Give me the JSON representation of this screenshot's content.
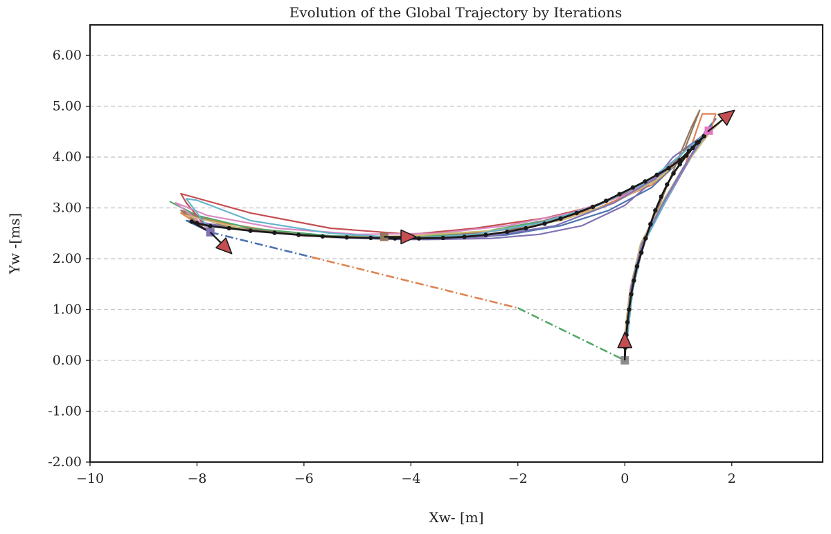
{
  "chart_data": {
    "type": "line",
    "title": "Evolution of the Global Trajectory by Iterations",
    "xlabel": "Xw- [m]",
    "ylabel": "Yw -[ms]",
    "xlim": [
      -10,
      3.7
    ],
    "ylim": [
      -2,
      6.6
    ],
    "x_ticks": [
      -10,
      -8,
      -6,
      -4,
      -2,
      0,
      2
    ],
    "x_tick_labels": [
      "−10",
      "−8",
      "−6",
      "−4",
      "−2",
      "0",
      "2"
    ],
    "y_ticks": [
      -2,
      -1,
      0,
      1,
      2,
      3,
      4,
      5,
      6
    ],
    "y_tick_labels": [
      "-2.00",
      "-1.00",
      "0.00",
      "1.00",
      "2.00",
      "3.00",
      "4.00",
      "5.00",
      "6.00"
    ],
    "grid": "horizontal dashed",
    "connector": {
      "style": "dash-dot",
      "segments": [
        {
          "color": "#4c72b0",
          "points": [
            [
              -7.75,
              2.52
            ],
            [
              -5.85,
              2.03
            ]
          ]
        },
        {
          "color": "#dd8452",
          "points": [
            [
              -5.85,
              2.03
            ],
            [
              -2.0,
              1.03
            ]
          ]
        },
        {
          "color": "#55a868",
          "points": [
            [
              -2.0,
              1.03
            ],
            [
              0.0,
              0.0
            ]
          ]
        }
      ]
    },
    "series": [
      {
        "color": "#4c72b0",
        "points": [
          [
            0.0,
            0.5
          ],
          [
            0.1,
            1.4
          ],
          [
            0.3,
            2.3
          ],
          [
            0.7,
            3.1
          ],
          [
            1.1,
            3.8
          ],
          [
            1.5,
            4.5
          ],
          [
            1.7,
            4.75
          ],
          [
            1.5,
            4.45
          ],
          [
            1.05,
            3.95
          ],
          [
            0.5,
            3.4
          ],
          [
            -0.3,
            2.95
          ],
          [
            -1.2,
            2.65
          ],
          [
            -2.2,
            2.47
          ],
          [
            -3.2,
            2.4
          ],
          [
            -3.7,
            2.38
          ]
        ]
      },
      {
        "color": "#4c72b0",
        "points": [
          [
            -3.7,
            2.38
          ],
          [
            -5.5,
            2.42
          ],
          [
            -7.2,
            2.58
          ],
          [
            -8.0,
            2.72
          ],
          [
            -8.2,
            2.75
          ],
          [
            -7.75,
            2.52
          ]
        ]
      },
      {
        "color": "#dd8452",
        "points": [
          [
            0.05,
            0.5
          ],
          [
            0.15,
            1.4
          ],
          [
            0.35,
            2.3
          ],
          [
            0.75,
            3.1
          ],
          [
            1.1,
            3.75
          ],
          [
            1.35,
            4.55
          ],
          [
            1.45,
            4.85
          ],
          [
            1.7,
            4.85
          ],
          [
            1.6,
            4.5
          ],
          [
            1.1,
            4.0
          ],
          [
            0.5,
            3.45
          ],
          [
            -0.5,
            3.0
          ],
          [
            -1.5,
            2.7
          ],
          [
            -3.0,
            2.45
          ],
          [
            -4.5,
            2.4
          ],
          [
            -6.0,
            2.45
          ],
          [
            -7.5,
            2.7
          ],
          [
            -8.3,
            2.9
          ],
          [
            -7.75,
            2.52
          ]
        ]
      },
      {
        "color": "#55a868",
        "points": [
          [
            0.0,
            0.5
          ],
          [
            0.1,
            1.4
          ],
          [
            0.3,
            2.3
          ],
          [
            0.7,
            3.1
          ],
          [
            1.1,
            3.8
          ],
          [
            1.55,
            4.5
          ],
          [
            1.3,
            4.3
          ],
          [
            0.9,
            3.9
          ],
          [
            0.4,
            3.5
          ],
          [
            -0.5,
            3.05
          ],
          [
            -1.5,
            2.75
          ],
          [
            -2.7,
            2.52
          ],
          [
            -4.0,
            2.42
          ],
          [
            -5.5,
            2.45
          ],
          [
            -7.0,
            2.6
          ],
          [
            -8.0,
            2.85
          ],
          [
            -8.5,
            3.12
          ]
        ]
      },
      {
        "color": "#c44e52",
        "points": [
          [
            0.0,
            0.5
          ],
          [
            0.1,
            1.4
          ],
          [
            0.3,
            2.3
          ],
          [
            0.7,
            3.1
          ],
          [
            1.1,
            3.8
          ],
          [
            1.6,
            4.55
          ],
          [
            1.2,
            4.2
          ],
          [
            0.5,
            3.5
          ],
          [
            -0.5,
            3.05
          ],
          [
            -1.5,
            2.8
          ],
          [
            -2.8,
            2.6
          ],
          [
            -4.0,
            2.48
          ],
          [
            -5.5,
            2.6
          ],
          [
            -7.0,
            2.9
          ],
          [
            -8.3,
            3.28
          ],
          [
            -8.2,
            3.1
          ],
          [
            -7.75,
            2.52
          ]
        ]
      },
      {
        "color": "#8172b3",
        "points": [
          [
            0.05,
            0.5
          ],
          [
            0.15,
            1.4
          ],
          [
            0.35,
            2.3
          ],
          [
            0.75,
            3.1
          ],
          [
            1.1,
            3.75
          ],
          [
            1.5,
            4.45
          ],
          [
            0.9,
            4.0
          ],
          [
            0.6,
            3.6
          ],
          [
            0.0,
            3.05
          ],
          [
            -0.8,
            2.65
          ],
          [
            -1.6,
            2.48
          ],
          [
            -2.5,
            2.4
          ],
          [
            -3.5,
            2.38
          ],
          [
            -4.3,
            2.38
          ],
          [
            -5.5,
            2.42
          ],
          [
            -7.0,
            2.55
          ],
          [
            -8.0,
            2.73
          ]
        ]
      },
      {
        "color": "#937860",
        "points": [
          [
            0.0,
            0.5
          ],
          [
            0.1,
            1.4
          ],
          [
            0.35,
            2.3
          ],
          [
            0.7,
            3.2
          ],
          [
            1.05,
            4.1
          ],
          [
            1.25,
            4.6
          ],
          [
            1.4,
            4.92
          ],
          [
            1.1,
            4.1
          ],
          [
            0.7,
            3.6
          ],
          [
            0.0,
            3.25
          ],
          [
            -1.0,
            2.9
          ],
          [
            -2.0,
            2.6
          ],
          [
            -3.5,
            2.43
          ],
          [
            -4.5,
            2.42
          ],
          [
            -6.0,
            2.45
          ],
          [
            -7.5,
            2.65
          ],
          [
            -8.3,
            2.95
          ],
          [
            -7.9,
            2.65
          ]
        ]
      },
      {
        "color": "#da8bc3",
        "points": [
          [
            0.05,
            0.6
          ],
          [
            0.15,
            1.4
          ],
          [
            0.35,
            2.3
          ],
          [
            0.75,
            3.1
          ],
          [
            1.1,
            3.8
          ],
          [
            1.55,
            4.55
          ],
          [
            1.3,
            4.2
          ],
          [
            0.8,
            3.75
          ],
          [
            0.0,
            3.25
          ],
          [
            -1.0,
            2.9
          ],
          [
            -2.2,
            2.65
          ],
          [
            -3.5,
            2.5
          ],
          [
            -5.0,
            2.48
          ],
          [
            -6.5,
            2.6
          ],
          [
            -7.8,
            2.85
          ],
          [
            -8.4,
            3.1
          ],
          [
            -8.1,
            2.85
          ],
          [
            -7.75,
            2.55
          ]
        ]
      },
      {
        "color": "#ccb974",
        "points": [
          [
            0.0,
            0.5
          ],
          [
            0.1,
            1.4
          ],
          [
            0.3,
            2.3
          ],
          [
            0.7,
            3.1
          ],
          [
            1.1,
            3.8
          ],
          [
            1.6,
            4.5
          ],
          [
            1.85,
            4.75
          ],
          [
            1.6,
            4.5
          ],
          [
            1.1,
            4.0
          ],
          [
            0.6,
            3.55
          ],
          [
            -0.2,
            3.1
          ],
          [
            -1.2,
            2.75
          ],
          [
            -2.5,
            2.55
          ],
          [
            -4.0,
            2.45
          ],
          [
            -5.5,
            2.42
          ],
          [
            -7.0,
            2.55
          ],
          [
            -8.2,
            2.85
          ]
        ]
      },
      {
        "color": "#64b5cd",
        "points": [
          [
            0.05,
            0.5
          ],
          [
            0.15,
            1.4
          ],
          [
            0.35,
            2.3
          ],
          [
            0.75,
            3.1
          ],
          [
            1.1,
            3.8
          ],
          [
            1.55,
            4.5
          ],
          [
            1.0,
            4.0
          ],
          [
            0.4,
            3.5
          ],
          [
            -0.5,
            3.05
          ],
          [
            -1.6,
            2.7
          ],
          [
            -2.8,
            2.48
          ],
          [
            -4.0,
            2.4
          ],
          [
            -5.5,
            2.5
          ],
          [
            -7.0,
            2.75
          ],
          [
            -8.0,
            3.15
          ],
          [
            -8.2,
            3.18
          ],
          [
            -7.75,
            2.55
          ]
        ]
      },
      {
        "color": "#8172b3",
        "points": [
          [
            0.02,
            0.5
          ],
          [
            0.12,
            1.45
          ],
          [
            0.32,
            2.3
          ],
          [
            0.72,
            3.1
          ],
          [
            1.1,
            3.8
          ],
          [
            1.5,
            4.45
          ],
          [
            1.2,
            4.1
          ],
          [
            0.6,
            3.6
          ],
          [
            -0.2,
            3.1
          ],
          [
            -1.3,
            2.65
          ],
          [
            -2.6,
            2.43
          ],
          [
            -4.0,
            2.38
          ]
        ]
      }
    ],
    "final_trajectory": {
      "color": "#1a1a1a",
      "points": [
        [
          0.0,
          0.02
        ],
        [
          0.01,
          0.25
        ],
        [
          0.03,
          0.5
        ],
        [
          0.05,
          0.75
        ],
        [
          0.08,
          1.0
        ],
        [
          0.12,
          1.3
        ],
        [
          0.17,
          1.57
        ],
        [
          0.23,
          1.85
        ],
        [
          0.31,
          2.12
        ],
        [
          0.39,
          2.4
        ],
        [
          0.48,
          2.68
        ],
        [
          0.57,
          2.95
        ],
        [
          0.68,
          3.22
        ],
        [
          0.79,
          3.46
        ],
        [
          0.91,
          3.68
        ],
        [
          1.03,
          3.86
        ],
        [
          1.15,
          4.03
        ],
        [
          1.27,
          4.18
        ],
        [
          1.38,
          4.3
        ],
        [
          1.48,
          4.41
        ],
        [
          1.56,
          4.5
        ],
        [
          1.48,
          4.41
        ],
        [
          1.35,
          4.28
        ],
        [
          1.2,
          4.12
        ],
        [
          1.03,
          3.94
        ],
        [
          0.82,
          3.78
        ],
        [
          0.6,
          3.65
        ],
        [
          0.38,
          3.52
        ],
        [
          0.15,
          3.4
        ],
        [
          -0.1,
          3.27
        ],
        [
          -0.35,
          3.14
        ],
        [
          -0.6,
          3.02
        ],
        [
          -0.9,
          2.9
        ],
        [
          -1.2,
          2.79
        ],
        [
          -1.5,
          2.69
        ],
        [
          -1.85,
          2.6
        ],
        [
          -2.2,
          2.53
        ],
        [
          -2.6,
          2.47
        ],
        [
          -3.0,
          2.43
        ],
        [
          -3.4,
          2.41
        ],
        [
          -3.85,
          2.4
        ],
        [
          -4.3,
          2.4
        ],
        [
          -4.75,
          2.41
        ],
        [
          -5.2,
          2.42
        ],
        [
          -5.65,
          2.44
        ],
        [
          -6.1,
          2.47
        ],
        [
          -6.55,
          2.51
        ],
        [
          -7.0,
          2.55
        ],
        [
          -7.4,
          2.6
        ],
        [
          -7.75,
          2.64
        ],
        [
          -8.0,
          2.7
        ],
        [
          -8.1,
          2.73
        ],
        [
          -7.75,
          2.52
        ]
      ]
    },
    "markers": [
      {
        "shape": "square",
        "color": "#8c8c8c",
        "x": 0.0,
        "y": 0.0
      },
      {
        "shape": "square",
        "color": "#e377c2",
        "x": 1.57,
        "y": 4.52
      },
      {
        "shape": "square",
        "color": "#937860",
        "x": -4.5,
        "y": 2.43
      },
      {
        "shape": "square",
        "color": "#8172b3",
        "x": -7.75,
        "y": 2.52
      }
    ],
    "arrows": [
      {
        "color": "#c44e52",
        "from": [
          0.0,
          0.0
        ],
        "to": [
          0.0,
          0.55
        ]
      },
      {
        "color": "#c44e52",
        "from": [
          1.55,
          4.5
        ],
        "to": [
          2.05,
          4.92
        ]
      },
      {
        "color": "#c44e52",
        "from": [
          -4.5,
          2.43
        ],
        "to": [
          -3.9,
          2.43
        ]
      },
      {
        "color": "#c44e52",
        "from": [
          -7.75,
          2.52
        ],
        "to": [
          -7.35,
          2.1
        ]
      }
    ]
  }
}
